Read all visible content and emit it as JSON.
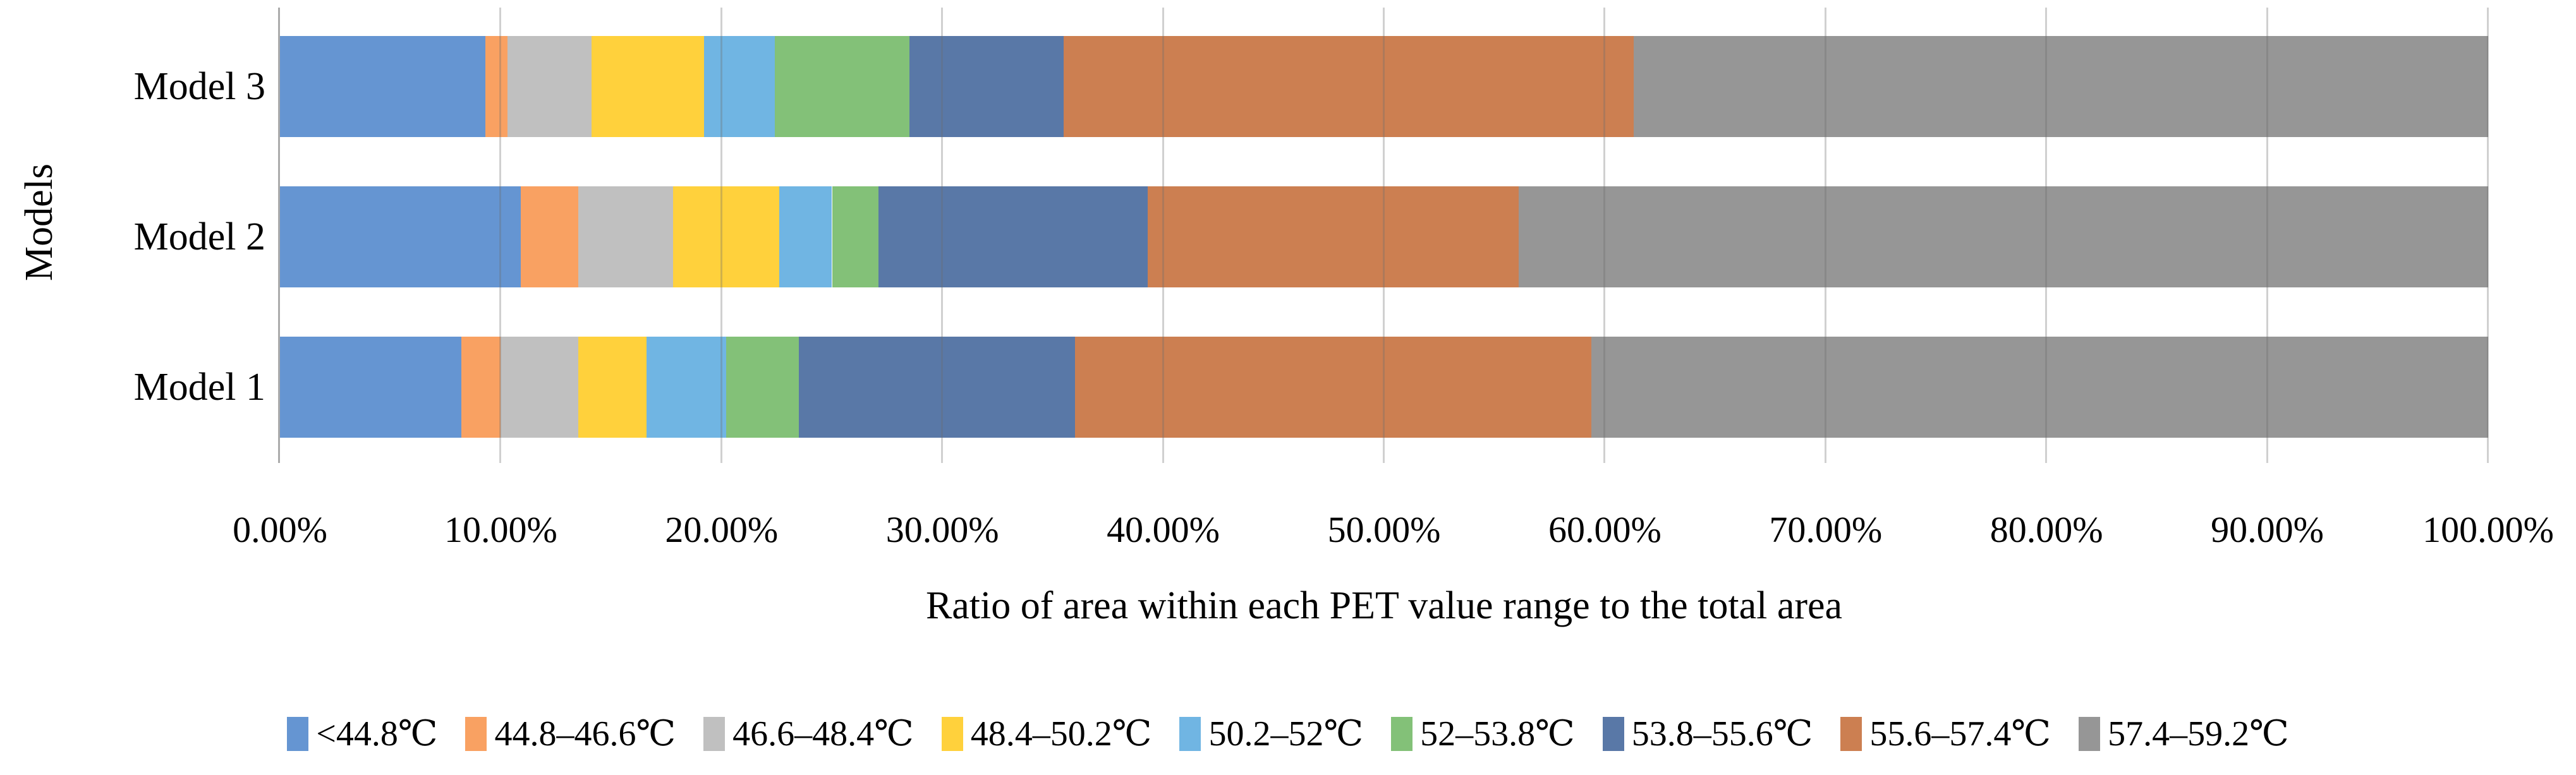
{
  "chart_data": {
    "type": "bar",
    "orientation": "horizontal",
    "stacked": true,
    "units": "percent",
    "title": "",
    "xlabel": "Ratio of area within each PET value range to the total area",
    "ylabel": "Models",
    "categories": [
      "Model 3",
      "Model 2",
      "Model 1"
    ],
    "category_order_note": "top to bottom as displayed",
    "xlim": [
      0,
      100
    ],
    "x_tick_labels": [
      "0.00%",
      "10.00%",
      "20.00%",
      "30.00%",
      "40.00%",
      "50.00%",
      "60.00%",
      "70.00%",
      "80.00%",
      "90.00%",
      "100.00%"
    ],
    "grid": true,
    "legend_position": "bottom",
    "series": [
      {
        "name": "<44.8℃",
        "color": "#6595d2",
        "values": [
          9.3,
          10.9,
          8.2
        ]
      },
      {
        "name": "44.8–46.6℃",
        "color": "#f9a162",
        "values": [
          1.0,
          2.6,
          1.8
        ]
      },
      {
        "name": "46.6–48.4℃",
        "color": "#c0c0c0",
        "values": [
          3.8,
          4.3,
          3.5
        ]
      },
      {
        "name": "48.4–50.2℃",
        "color": "#ffd13c",
        "values": [
          5.1,
          4.8,
          3.1
        ]
      },
      {
        "name": "50.2–52℃",
        "color": "#70b5e3",
        "values": [
          3.2,
          2.4,
          3.6
        ]
      },
      {
        "name": "52–53.8℃",
        "color": "#83c178",
        "values": [
          6.1,
          2.1,
          3.3
        ]
      },
      {
        "name": "53.8–55.6℃",
        "color": "#5978a7",
        "values": [
          7.0,
          12.2,
          12.5
        ]
      },
      {
        "name": "55.6–57.4℃",
        "color": "#cc7f51",
        "values": [
          25.8,
          16.8,
          23.4
        ]
      },
      {
        "name": "57.4–59.2℃",
        "color": "#969696",
        "values": [
          38.7,
          43.9,
          40.6
        ]
      }
    ],
    "axis_color": "#ababab",
    "gridline_color": "#d9d9d9",
    "text_color": "#000000"
  }
}
